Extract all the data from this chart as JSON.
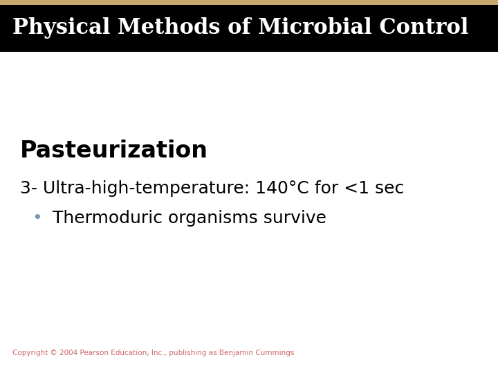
{
  "title": "Physical Methods of Microbial Control",
  "title_bg_color": "#000000",
  "title_text_color": "#ffffff",
  "title_bar_color": "#c8a96e",
  "body_bg_color": "#ffffff",
  "heading": "Pasteurization",
  "heading_color": "#000000",
  "heading_fontsize": 24,
  "line1": "3- Ultra-high-temperature: 140°C for <1 sec",
  "line1_color": "#000000",
  "line1_fontsize": 18,
  "bullet_text": "Thermoduric organisms survive",
  "bullet_color": "#000000",
  "bullet_fontsize": 18,
  "bullet_dot_color": "#7799bb",
  "copyright": "Copyright © 2004 Pearson Education, Inc., publishing as Benjamin Cummings",
  "copyright_color": "#cc6666",
  "copyright_fontsize": 7.5,
  "title_fontsize": 22
}
